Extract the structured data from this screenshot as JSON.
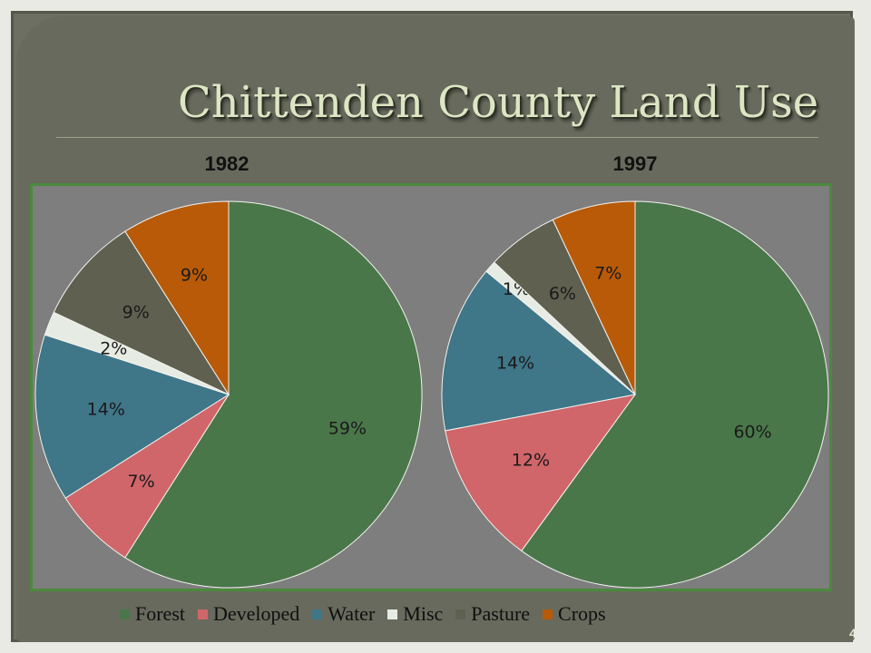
{
  "slide": {
    "title": "Chittenden County Land Use",
    "page_number": "4"
  },
  "colors": {
    "Forest": "#4a774a",
    "Developed": "#d0666a",
    "Water": "#3f7688",
    "Misc": "#e6ece3",
    "Pasture": "#5f6050",
    "Crops": "#b85a08"
  },
  "chart_data": [
    {
      "type": "pie",
      "title": "1982",
      "categories": [
        "Forest",
        "Developed",
        "Water",
        "Misc",
        "Pasture",
        "Crops"
      ],
      "values": [
        59,
        7,
        14,
        2,
        9,
        9
      ],
      "labels": [
        "59%",
        "7%",
        "14%",
        "2%",
        "9%",
        "9%"
      ],
      "legend_position": "bottom"
    },
    {
      "type": "pie",
      "title": "1997",
      "categories": [
        "Forest",
        "Developed",
        "Water",
        "Misc",
        "Pasture",
        "Crops"
      ],
      "values": [
        60,
        12,
        14,
        1,
        6,
        7
      ],
      "labels": [
        "60%",
        "12%",
        "14%",
        "1%",
        "6%",
        "7%"
      ],
      "legend_position": "bottom"
    }
  ],
  "legend": {
    "items": [
      "Forest",
      "Developed",
      "Water",
      "Misc",
      "Pasture",
      "Crops"
    ]
  }
}
